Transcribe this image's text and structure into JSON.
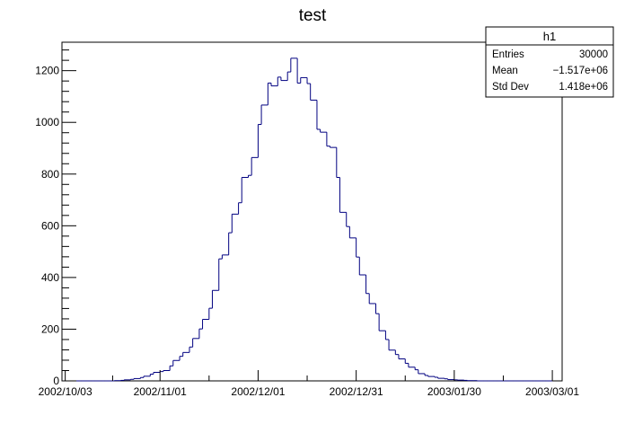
{
  "chart_data": {
    "type": "histogram",
    "title": "test",
    "xlabel": "",
    "ylabel": "",
    "x_axis_kind": "date",
    "xlim": [
      "2002-10-02",
      "2003-03-04"
    ],
    "ylim": [
      0,
      1310
    ],
    "x_tick_labels": [
      "2002/10/03",
      "2002/11/01",
      "2002/12/01",
      "2002/12/31",
      "2003/01/30",
      "2003/03/01"
    ],
    "x_tick_dates": [
      "2002-10-03",
      "2002-11-01",
      "2002-12-01",
      "2002-12-31",
      "2003-01-30",
      "2003-03-01"
    ],
    "y_ticks": [
      0,
      200,
      400,
      600,
      800,
      1000,
      1200
    ],
    "y_tick_labels": [
      "0",
      "200",
      "400",
      "600",
      "800",
      "1000",
      "1200"
    ],
    "grid": false,
    "line_color": "#000080",
    "series": [
      {
        "bin_start_dates": [
          "2002-10-02",
          "2002-10-03",
          "2002-10-05",
          "2002-10-06",
          "2002-10-08",
          "2002-10-09",
          "2002-10-11",
          "2002-10-12",
          "2002-10-14",
          "2002-10-15",
          "2002-10-17",
          "2002-10-18",
          "2002-10-20",
          "2002-10-21",
          "2002-10-23",
          "2002-10-24",
          "2002-10-26",
          "2002-10-27",
          "2002-10-29",
          "2002-10-30",
          "2002-11-01",
          "2002-11-02",
          "2002-11-04",
          "2002-11-05",
          "2002-11-07",
          "2002-11-08",
          "2002-11-10",
          "2002-11-11",
          "2002-11-13",
          "2002-11-14",
          "2002-11-16",
          "2002-11-17",
          "2002-11-19",
          "2002-11-20",
          "2002-11-22",
          "2002-11-23",
          "2002-11-25",
          "2002-11-26",
          "2002-11-28",
          "2002-11-29",
          "2002-12-01",
          "2002-12-02",
          "2002-12-04",
          "2002-12-05",
          "2002-12-07",
          "2002-12-08",
          "2002-12-10",
          "2002-12-11",
          "2002-12-13",
          "2002-12-14",
          "2002-12-16",
          "2002-12-17",
          "2002-12-19",
          "2002-12-20",
          "2002-12-22",
          "2002-12-23",
          "2002-12-25",
          "2002-12-26",
          "2002-12-28",
          "2002-12-29",
          "2002-12-31",
          "2003-01-01",
          "2003-01-03",
          "2003-01-04",
          "2003-01-06",
          "2003-01-07",
          "2003-01-09",
          "2003-01-10",
          "2003-01-12",
          "2003-01-13",
          "2003-01-15",
          "2003-01-16",
          "2003-01-18",
          "2003-01-19",
          "2003-01-21",
          "2003-01-22",
          "2003-01-24",
          "2003-01-25",
          "2003-01-27",
          "2003-01-28",
          "2003-01-30",
          "2003-01-31",
          "2003-02-02",
          "2003-02-03",
          "2003-02-05",
          "2003-02-06",
          "2003-02-08",
          "2003-02-09",
          "2003-02-11",
          "2003-02-12",
          "2003-02-14",
          "2003-02-15",
          "2003-02-17",
          "2003-02-18",
          "2003-02-20",
          "2003-02-21",
          "2003-02-23",
          "2003-02-24",
          "2003-02-26",
          "2003-02-27"
        ],
        "bin_end_date": "2003-03-01",
        "values": [
          0,
          0,
          0,
          0,
          0,
          0,
          0,
          0,
          0,
          0,
          0,
          1,
          2,
          4,
          6,
          9,
          13,
          18,
          26,
          33,
          36,
          40,
          58,
          79,
          95,
          110,
          131,
          164,
          201,
          238,
          281,
          350,
          472,
          487,
          573,
          645,
          689,
          787,
          795,
          864,
          992,
          1067,
          1152,
          1141,
          1175,
          1162,
          1195,
          1248,
          1152,
          1173,
          1150,
          1086,
          973,
          962,
          908,
          903,
          787,
          652,
          597,
          553,
          479,
          410,
          338,
          299,
          260,
          194,
          160,
          119,
          102,
          85,
          68,
          53,
          43,
          28,
          21,
          17,
          14,
          10,
          8,
          5,
          4,
          3,
          2,
          1,
          1,
          0,
          0,
          0,
          0,
          0,
          0,
          0,
          0,
          0,
          0,
          0,
          0,
          0,
          0,
          0
        ]
      }
    ]
  },
  "stats_box": {
    "name": "h1",
    "rows": [
      {
        "label": "Entries",
        "value": "30000"
      },
      {
        "label": "Mean",
        "value": "−1.517e+06"
      },
      {
        "label": "Std Dev",
        "value": "1.418e+06"
      }
    ]
  }
}
